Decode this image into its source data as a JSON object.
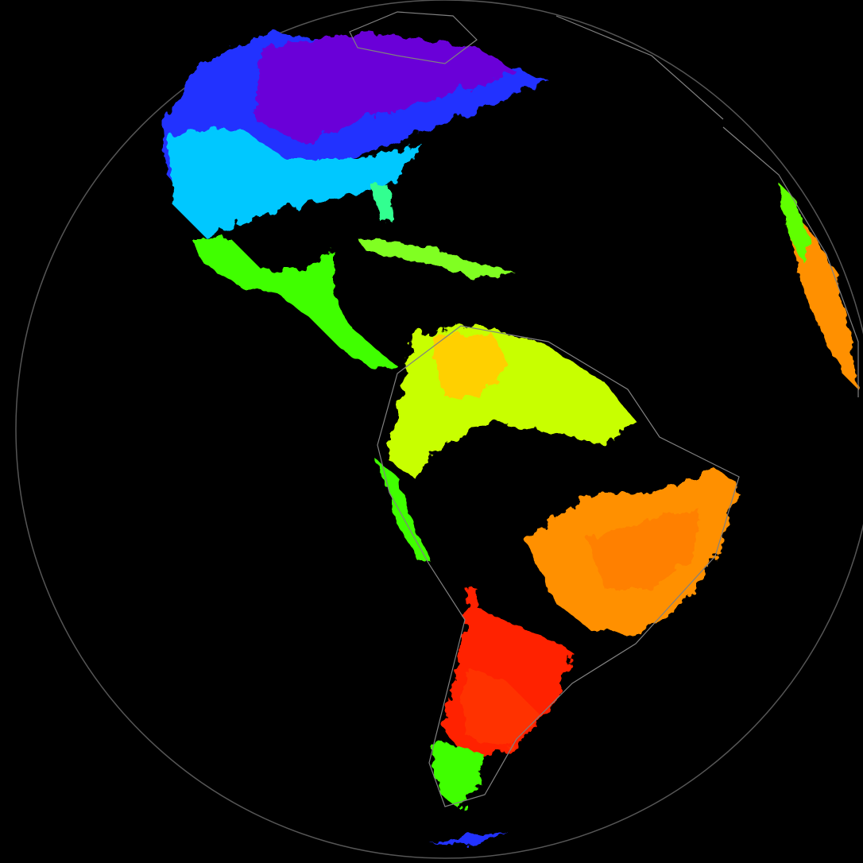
{
  "map": {
    "projection": "orthographic",
    "background_color": "#000000",
    "coastline_color": "#808080",
    "palette": [
      "#6a00d8",
      "#2030ff",
      "#00c8ff",
      "#00ff90",
      "#40ff00",
      "#c8ff00",
      "#ffe000",
      "#ff9000",
      "#ff2000"
    ],
    "regions": [
      {
        "name": "north-america-north",
        "color": "#2030ff"
      },
      {
        "name": "north-america-interior",
        "color": "#6a00d8"
      },
      {
        "name": "north-america-south",
        "color": "#00c8ff"
      },
      {
        "name": "mexico-central-america",
        "color": "#40ff00"
      },
      {
        "name": "caribbean",
        "color": "#80ff20"
      },
      {
        "name": "northern-south-america",
        "color": "#c8ff00"
      },
      {
        "name": "brazil-east",
        "color": "#ff9000"
      },
      {
        "name": "southern-cone",
        "color": "#ff2000"
      },
      {
        "name": "patagonia",
        "color": "#40ff00"
      },
      {
        "name": "west-africa-coast",
        "color": "#ff9000"
      }
    ]
  }
}
